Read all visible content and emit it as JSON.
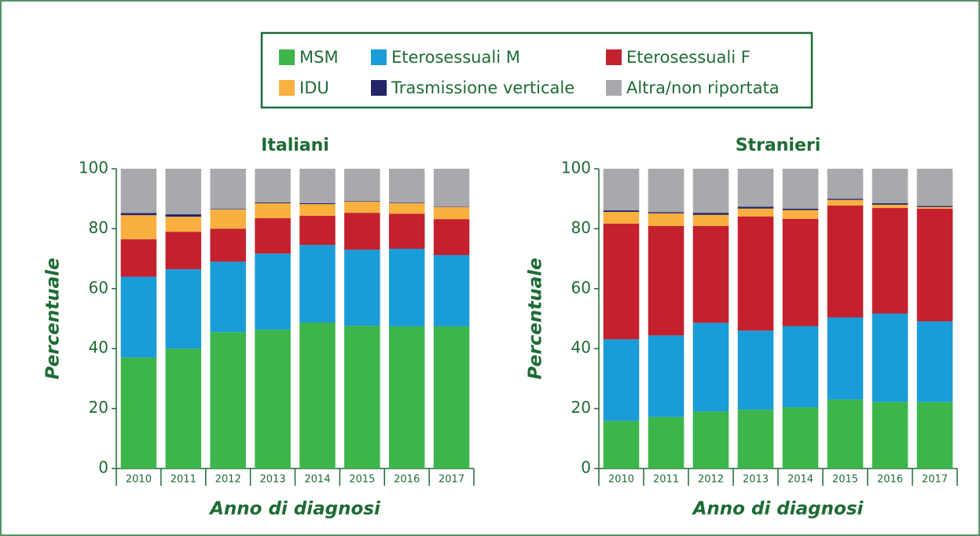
{
  "legend": [
    {
      "name": "MSM",
      "color": "#3cb54a"
    },
    {
      "name": "Eterosessuali M",
      "color": "#1a9cd8"
    },
    {
      "name": "Eterosessuali F",
      "color": "#c5202e"
    },
    {
      "name": "IDU",
      "color": "#f9b03f"
    },
    {
      "name": "Trasmissione verticale",
      "color": "#24246a"
    },
    {
      "name": "Altra/non riportata",
      "color": "#a7a9ac"
    }
  ],
  "chart_data": [
    {
      "type": "bar",
      "stacked": true,
      "title": "Italiani",
      "ylabel": "Percentuale",
      "xlabel": "Anno di diagnosi",
      "categories": [
        "2010",
        "2011",
        "2012",
        "2013",
        "2014",
        "2015",
        "2016",
        "2017"
      ],
      "ylim": [
        0,
        100
      ],
      "yticks": [
        0,
        20,
        40,
        60,
        80,
        100
      ],
      "series": [
        {
          "values": [
            37,
            40,
            45.5,
            46.3,
            48.7,
            47.6,
            47.4,
            47.4
          ]
        },
        {
          "values": [
            27,
            26.5,
            23.5,
            25.4,
            25.9,
            25.4,
            25.9,
            23.8
          ]
        },
        {
          "values": [
            12.5,
            12.5,
            11,
            11.8,
            9.7,
            12.3,
            11.7,
            12
          ]
        },
        {
          "values": [
            8,
            5,
            6.4,
            5,
            3.9,
            3.7,
            3.5,
            4
          ]
        },
        {
          "values": [
            0.7,
            0.8,
            0.2,
            0.3,
            0.3,
            0.2,
            0.2,
            0.1
          ]
        },
        {
          "values": [
            14.8,
            15.2,
            13.4,
            11.2,
            11.5,
            10.8,
            11.3,
            12.7
          ]
        }
      ]
    },
    {
      "type": "bar",
      "stacked": true,
      "title": "Stranieri",
      "ylabel": "Percentuale",
      "xlabel": "Anno di diagnosi",
      "categories": [
        "2010",
        "2011",
        "2012",
        "2013",
        "2014",
        "2015",
        "2016",
        "2017"
      ],
      "ylim": [
        0,
        100
      ],
      "yticks": [
        0,
        20,
        40,
        60,
        80,
        100
      ],
      "series": [
        {
          "values": [
            15.9,
            17.2,
            19,
            19.6,
            20.4,
            23,
            22.2,
            22.2
          ]
        },
        {
          "values": [
            27.2,
            27.2,
            29.6,
            26.4,
            27.1,
            27.4,
            29.5,
            26.9
          ]
        },
        {
          "values": [
            38.6,
            36.5,
            32.3,
            38.1,
            35.8,
            37.3,
            35.2,
            37.6
          ]
        },
        {
          "values": [
            3.9,
            4.2,
            3.7,
            2.6,
            2.9,
            1.9,
            1.1,
            0.5
          ]
        },
        {
          "values": [
            0.5,
            0.4,
            0.7,
            0.6,
            0.5,
            0.4,
            0.5,
            0.4
          ]
        },
        {
          "values": [
            13.9,
            14.5,
            14.7,
            12.7,
            13.3,
            10,
            11.5,
            12.4
          ]
        }
      ]
    }
  ]
}
